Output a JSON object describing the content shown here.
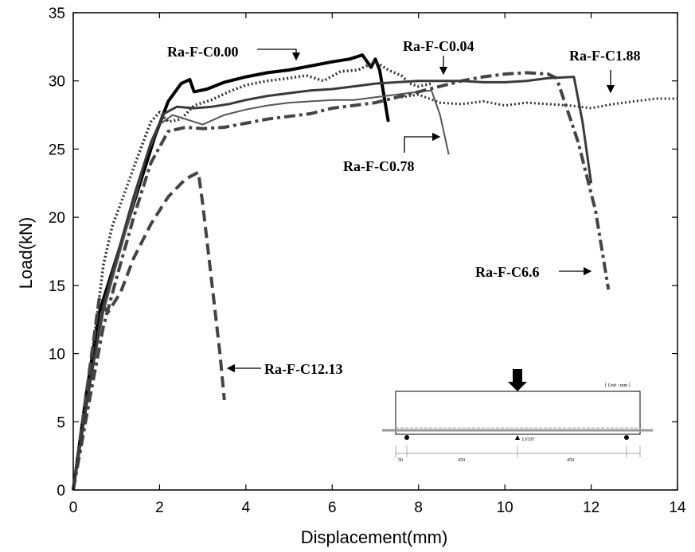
{
  "chart_data": {
    "type": "line",
    "xlabel": "Displacement(mm)",
    "ylabel": "Load(kN)",
    "xlim": [
      0,
      14
    ],
    "ylim": [
      0,
      35
    ],
    "xticks": [
      "0",
      "2",
      "4",
      "6",
      "8",
      "10",
      "12",
      "14"
    ],
    "yticks": [
      "0",
      "5",
      "10",
      "15",
      "20",
      "25",
      "30",
      "35"
    ],
    "grid": false,
    "series": [
      {
        "name": "Ra-F-C0.00",
        "style": "solid-thick",
        "color": "#000000",
        "points": [
          [
            0,
            0
          ],
          [
            0.3,
            7
          ],
          [
            0.6,
            13
          ],
          [
            0.8,
            15
          ],
          [
            1.0,
            17
          ],
          [
            1.3,
            20
          ],
          [
            1.6,
            23
          ],
          [
            1.9,
            26
          ],
          [
            2.2,
            28.5
          ],
          [
            2.5,
            29.8
          ],
          [
            2.7,
            30.1
          ],
          [
            2.8,
            29.2
          ],
          [
            3.1,
            29.4
          ],
          [
            3.5,
            29.9
          ],
          [
            4.0,
            30.3
          ],
          [
            4.5,
            30.6
          ],
          [
            5.0,
            30.8
          ],
          [
            5.5,
            31.1
          ],
          [
            6.0,
            31.4
          ],
          [
            6.4,
            31.6
          ],
          [
            6.7,
            31.9
          ],
          [
            6.9,
            31.0
          ],
          [
            7.0,
            31.6
          ],
          [
            7.1,
            30.8
          ],
          [
            7.3,
            27.0
          ]
        ]
      },
      {
        "name": "Ra-F-C0.04",
        "style": "dotted",
        "color": "#333333",
        "points": [
          [
            0,
            0
          ],
          [
            0.4,
            9
          ],
          [
            0.7,
            16.5
          ],
          [
            0.9,
            19.3
          ],
          [
            1.1,
            21
          ],
          [
            1.5,
            24.5
          ],
          [
            1.8,
            27.0
          ],
          [
            2.0,
            27.7
          ],
          [
            2.2,
            27.0
          ],
          [
            2.5,
            27.2
          ],
          [
            2.8,
            28.2
          ],
          [
            3.2,
            28.6
          ],
          [
            3.6,
            29.2
          ],
          [
            4.0,
            29.7
          ],
          [
            4.5,
            30.0
          ],
          [
            5.0,
            30.2
          ],
          [
            5.4,
            30.4
          ],
          [
            5.8,
            30.0
          ],
          [
            6.2,
            30.7
          ],
          [
            6.6,
            30.8
          ],
          [
            7.0,
            31.4
          ],
          [
            7.3,
            30.8
          ],
          [
            7.6,
            30.4
          ],
          [
            7.8,
            29.8
          ],
          [
            8.0,
            29.6
          ],
          [
            8.3,
            29.8
          ]
        ]
      },
      {
        "name": "Ra-F-C0.78",
        "style": "solid-thin",
        "color": "#555555",
        "points": [
          [
            0,
            0
          ],
          [
            0.4,
            8
          ],
          [
            0.7,
            13
          ],
          [
            1.0,
            16.5
          ],
          [
            1.4,
            21
          ],
          [
            1.7,
            24.5
          ],
          [
            2.0,
            26.8
          ],
          [
            2.3,
            27.5
          ],
          [
            2.6,
            27.2
          ],
          [
            3.0,
            26.8
          ],
          [
            3.5,
            27.5
          ],
          [
            4.0,
            27.9
          ],
          [
            4.5,
            28.2
          ],
          [
            5.0,
            28.4
          ],
          [
            5.5,
            28.5
          ],
          [
            6.0,
            28.6
          ],
          [
            6.5,
            28.6
          ],
          [
            7.0,
            28.8
          ],
          [
            7.5,
            29.0
          ],
          [
            8.0,
            29.2
          ],
          [
            8.3,
            29.3
          ],
          [
            8.5,
            27.5
          ],
          [
            8.7,
            24.6
          ]
        ]
      },
      {
        "name": "Ra-F-C1.88",
        "style": "dotted-fine",
        "color": "#333333",
        "points": [
          [
            7.6,
            28.8
          ],
          [
            8.0,
            29.0
          ],
          [
            8.5,
            28.4
          ],
          [
            9.0,
            28.3
          ],
          [
            9.5,
            28.5
          ],
          [
            10.0,
            28.2
          ],
          [
            10.5,
            28.4
          ],
          [
            11.0,
            28.3
          ],
          [
            11.5,
            28.2
          ],
          [
            12.0,
            28.0
          ],
          [
            12.5,
            28.3
          ],
          [
            13.0,
            28.5
          ],
          [
            13.5,
            28.7
          ],
          [
            14.0,
            28.7
          ]
        ]
      },
      {
        "name": "Ra-F-C6.6",
        "style": "dash-dot",
        "color": "#444444",
        "points": [
          [
            0,
            0
          ],
          [
            0.4,
            7
          ],
          [
            0.7,
            12
          ],
          [
            1.0,
            15.5
          ],
          [
            1.4,
            20
          ],
          [
            1.8,
            24
          ],
          [
            2.2,
            26.3
          ],
          [
            2.6,
            26.6
          ],
          [
            3.0,
            26.5
          ],
          [
            3.5,
            26.6
          ],
          [
            4.0,
            26.9
          ],
          [
            4.5,
            27.2
          ],
          [
            5.0,
            27.4
          ],
          [
            5.5,
            27.6
          ],
          [
            6.0,
            28.0
          ],
          [
            6.5,
            28.2
          ],
          [
            7.0,
            28.4
          ],
          [
            7.5,
            28.8
          ],
          [
            8.0,
            29.2
          ],
          [
            8.5,
            29.6
          ],
          [
            9.0,
            30.0
          ],
          [
            9.5,
            30.3
          ],
          [
            10.0,
            30.5
          ],
          [
            10.5,
            30.6
          ],
          [
            11.0,
            30.5
          ],
          [
            11.2,
            30.2
          ],
          [
            11.7,
            25.5
          ],
          [
            12.1,
            20.5
          ],
          [
            12.4,
            14.7
          ]
        ]
      },
      {
        "name": "Ra-F-C12.13",
        "style": "dashed",
        "color": "#444444",
        "points": [
          [
            0,
            0
          ],
          [
            0.3,
            7
          ],
          [
            0.6,
            14
          ],
          [
            0.8,
            13
          ],
          [
            1.1,
            14.5
          ],
          [
            1.4,
            17
          ],
          [
            1.8,
            19.5
          ],
          [
            2.2,
            21.5
          ],
          [
            2.6,
            22.8
          ],
          [
            2.9,
            23.3
          ],
          [
            3.0,
            21
          ],
          [
            3.2,
            15.5
          ],
          [
            3.4,
            10
          ],
          [
            3.5,
            6.6
          ]
        ]
      },
      {
        "name": "",
        "style": "solid-medium",
        "color": "#3a3a3a",
        "points": [
          [
            0,
            0
          ],
          [
            0.4,
            8
          ],
          [
            0.7,
            13.5
          ],
          [
            1.0,
            17
          ],
          [
            1.4,
            21.5
          ],
          [
            1.8,
            25.5
          ],
          [
            2.1,
            27.6
          ],
          [
            2.4,
            28.1
          ],
          [
            2.8,
            28.0
          ],
          [
            3.2,
            28.1
          ],
          [
            3.6,
            28.3
          ],
          [
            4.0,
            28.6
          ],
          [
            4.5,
            28.9
          ],
          [
            5.0,
            29.1
          ],
          [
            5.5,
            29.3
          ],
          [
            6.0,
            29.4
          ],
          [
            6.5,
            29.6
          ],
          [
            7.0,
            29.8
          ],
          [
            7.5,
            29.9
          ],
          [
            8.0,
            30.0
          ],
          [
            8.5,
            30.0
          ],
          [
            9.0,
            30.0
          ],
          [
            9.5,
            29.9
          ],
          [
            10.0,
            29.9
          ],
          [
            10.5,
            30.0
          ],
          [
            11.0,
            30.2
          ],
          [
            11.6,
            30.3
          ],
          [
            11.8,
            27.0
          ],
          [
            12.0,
            22.5
          ]
        ]
      }
    ],
    "annotations": [
      {
        "text": "Ra-F-C0.00",
        "arrow_to": [
          5.2,
          30.9
        ]
      },
      {
        "text": "Ra-F-C0.04",
        "arrow_to": [
          8.6,
          30.4
        ]
      },
      {
        "text": "Ra-F-C1.88",
        "arrow_to": [
          12.4,
          28.6
        ]
      },
      {
        "text": "Ra-F-C0.78",
        "arrow_to": [
          8.4,
          25.8
        ]
      },
      {
        "text": "Ra-F-C6.6",
        "arrow_to": [
          12.2,
          15.4
        ]
      },
      {
        "text": "Ra-F-C12.13",
        "arrow_to": [
          3.5,
          8.8
        ]
      }
    ]
  },
  "inset": {
    "unit_label": "[ Unit : mm ]",
    "lvdt_label": "LVDT",
    "dims": [
      "50",
      "450",
      "450"
    ]
  }
}
